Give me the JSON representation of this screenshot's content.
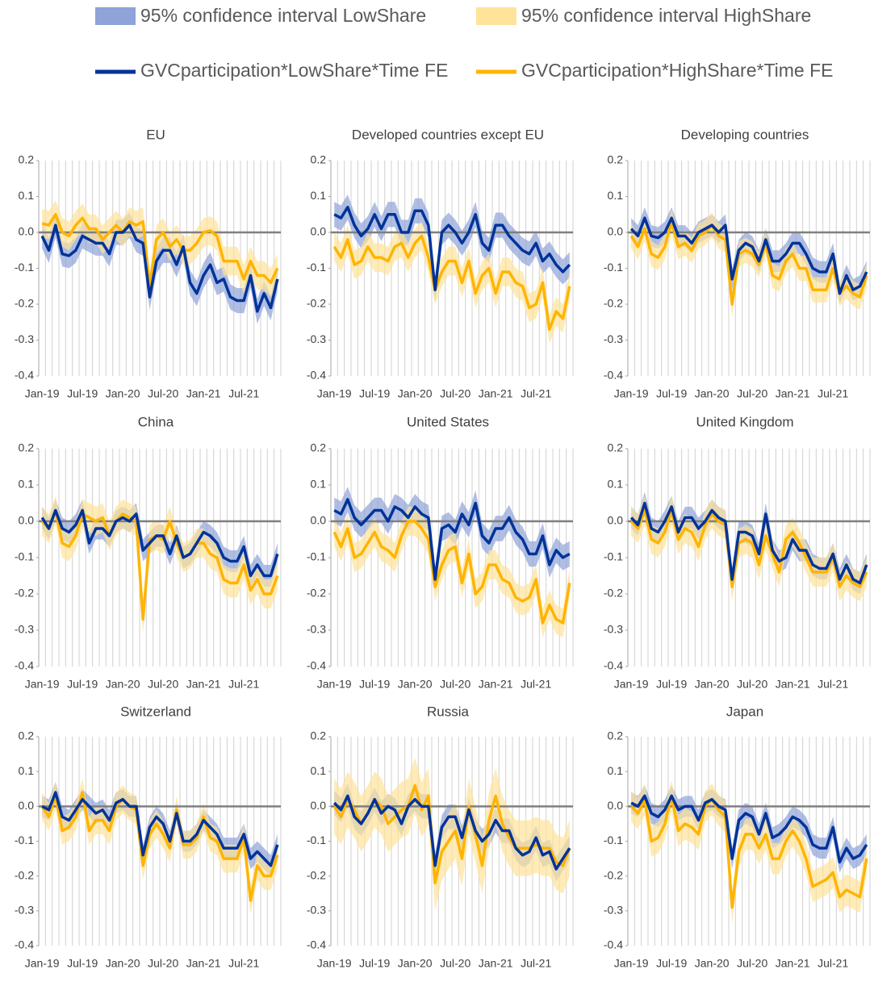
{
  "legend": [
    {
      "name": "GVCparticipation*LowShare*Time FE",
      "color": "#003399",
      "band_name": "95% confidence interval LowShare",
      "band_color": "#8fa3d9"
    },
    {
      "name": "GVCparticipation*HighShare*Time FE",
      "color": "#ffb400",
      "band_name": "95% confidence interval HighShare",
      "band_color": "#ffe39a"
    }
  ],
  "categories": [
    "Jan-19",
    null,
    null,
    null,
    null,
    null,
    "Jul-19",
    null,
    null,
    null,
    null,
    null,
    "Jan-20",
    null,
    null,
    null,
    null,
    null,
    "Jul-20",
    null,
    null,
    null,
    null,
    null,
    "Jan-21",
    null,
    null,
    null,
    null,
    null,
    "Jul-21",
    null,
    null,
    null,
    null,
    null
  ],
  "ylim": [
    -0.4,
    0.2
  ],
  "yticks": [
    -0.4,
    -0.3,
    -0.2,
    -0.1,
    {
      "value": 0,
      "label": "0.0"
    },
    0.1,
    0.2
  ],
  "chart_data": [
    {
      "type": "line",
      "title": "EU",
      "series": [
        {
          "ci": 0.035,
          "values": [
            -0.01,
            -0.05,
            0.02,
            -0.06,
            -0.065,
            -0.05,
            -0.01,
            -0.02,
            -0.03,
            -0.03,
            -0.06,
            0.0,
            0.0,
            0.02,
            -0.02,
            -0.03,
            -0.18,
            -0.08,
            -0.05,
            -0.05,
            -0.09,
            -0.04,
            -0.14,
            -0.17,
            -0.12,
            -0.09,
            -0.14,
            -0.13,
            -0.18,
            -0.19,
            -0.19,
            -0.12,
            -0.22,
            -0.17,
            -0.21,
            -0.13
          ]
        },
        {
          "ci": 0.04,
          "values": [
            0.025,
            0.02,
            0.05,
            0.0,
            -0.01,
            0.02,
            0.04,
            0.01,
            0.01,
            -0.02,
            0.0,
            0.02,
            0.0,
            0.03,
            0.02,
            0.03,
            -0.15,
            -0.02,
            0.0,
            -0.04,
            -0.02,
            -0.05,
            -0.05,
            -0.03,
            0.0,
            0.005,
            -0.01,
            -0.08,
            -0.08,
            -0.08,
            -0.13,
            -0.08,
            -0.12,
            -0.12,
            -0.14,
            -0.1
          ]
        }
      ]
    },
    {
      "type": "line",
      "title": "Developed countries except EU",
      "series": [
        {
          "ci": 0.035,
          "values": [
            0.05,
            0.04,
            0.07,
            0.02,
            -0.01,
            0.01,
            0.05,
            0.01,
            0.05,
            0.05,
            0.0,
            0.0,
            0.06,
            0.06,
            0.02,
            -0.16,
            0.0,
            0.02,
            0.0,
            -0.03,
            0.0,
            0.05,
            -0.03,
            -0.05,
            0.02,
            0.02,
            -0.01,
            -0.03,
            -0.05,
            -0.06,
            -0.03,
            -0.08,
            -0.06,
            -0.09,
            -0.11,
            -0.09
          ]
        },
        {
          "ci": 0.04,
          "values": [
            -0.04,
            -0.07,
            -0.02,
            -0.09,
            -0.08,
            -0.04,
            -0.07,
            -0.07,
            -0.08,
            -0.04,
            -0.03,
            -0.07,
            -0.03,
            -0.01,
            -0.07,
            -0.16,
            -0.11,
            -0.08,
            -0.08,
            -0.14,
            -0.08,
            -0.17,
            -0.12,
            -0.1,
            -0.17,
            -0.11,
            -0.11,
            -0.14,
            -0.15,
            -0.21,
            -0.2,
            -0.14,
            -0.27,
            -0.22,
            -0.24,
            -0.15
          ]
        }
      ]
    },
    {
      "type": "line",
      "title": "Developing countries",
      "series": [
        {
          "ci": 0.03,
          "values": [
            0.01,
            -0.01,
            0.04,
            -0.01,
            -0.015,
            0.0,
            0.04,
            -0.01,
            -0.01,
            -0.03,
            0.0,
            0.01,
            0.02,
            0.0,
            0.02,
            -0.13,
            -0.05,
            -0.03,
            -0.04,
            -0.08,
            -0.02,
            -0.08,
            -0.08,
            -0.06,
            -0.03,
            -0.03,
            -0.06,
            -0.1,
            -0.11,
            -0.11,
            -0.06,
            -0.17,
            -0.12,
            -0.16,
            -0.15,
            -0.11
          ]
        },
        {
          "ci": 0.035,
          "values": [
            -0.01,
            -0.04,
            0.01,
            -0.06,
            -0.07,
            -0.04,
            0.03,
            -0.04,
            -0.03,
            -0.05,
            -0.01,
            0.0,
            0.02,
            -0.01,
            -0.02,
            -0.2,
            -0.06,
            -0.05,
            -0.06,
            -0.09,
            -0.03,
            -0.12,
            -0.13,
            -0.08,
            -0.06,
            -0.1,
            -0.1,
            -0.16,
            -0.16,
            -0.16,
            -0.1,
            -0.17,
            -0.15,
            -0.17,
            -0.18,
            -0.12
          ]
        }
      ]
    },
    {
      "type": "line",
      "title": "China",
      "series": [
        {
          "ci": 0.03,
          "values": [
            0.01,
            -0.02,
            0.03,
            -0.02,
            -0.03,
            -0.01,
            0.03,
            -0.06,
            -0.02,
            -0.02,
            -0.04,
            0.0,
            0.01,
            0.0,
            0.02,
            -0.08,
            -0.06,
            -0.04,
            -0.04,
            -0.09,
            -0.04,
            -0.1,
            -0.09,
            -0.06,
            -0.03,
            -0.04,
            -0.06,
            -0.1,
            -0.11,
            -0.11,
            -0.07,
            -0.15,
            -0.12,
            -0.15,
            -0.15,
            -0.09
          ]
        },
        {
          "ci": 0.04,
          "values": [
            0.0,
            -0.02,
            0.03,
            -0.06,
            -0.07,
            -0.04,
            0.02,
            0.01,
            0.0,
            0.01,
            -0.04,
            0.0,
            0.02,
            0.01,
            0.0,
            -0.27,
            -0.05,
            -0.04,
            -0.05,
            0.0,
            -0.06,
            -0.1,
            -0.09,
            -0.06,
            -0.06,
            -0.09,
            -0.1,
            -0.16,
            -0.17,
            -0.17,
            -0.12,
            -0.19,
            -0.16,
            -0.2,
            -0.2,
            -0.15
          ]
        }
      ]
    },
    {
      "type": "line",
      "title": "United States",
      "series": [
        {
          "ci": 0.035,
          "values": [
            0.03,
            0.02,
            0.06,
            0.01,
            -0.01,
            0.01,
            0.03,
            0.03,
            0.0,
            0.04,
            0.03,
            0.01,
            0.04,
            0.02,
            0.01,
            -0.16,
            -0.02,
            -0.01,
            -0.03,
            0.02,
            -0.01,
            0.05,
            -0.04,
            -0.06,
            -0.02,
            -0.02,
            0.01,
            -0.03,
            -0.05,
            -0.09,
            -0.09,
            -0.04,
            -0.12,
            -0.08,
            -0.1,
            -0.09
          ]
        },
        {
          "ci": 0.04,
          "values": [
            -0.03,
            -0.07,
            -0.02,
            -0.1,
            -0.09,
            -0.06,
            -0.03,
            -0.07,
            -0.08,
            -0.1,
            -0.04,
            0.0,
            0.0,
            -0.02,
            -0.05,
            -0.18,
            -0.12,
            -0.08,
            -0.07,
            -0.17,
            -0.09,
            -0.2,
            -0.18,
            -0.12,
            -0.12,
            -0.16,
            -0.17,
            -0.21,
            -0.22,
            -0.21,
            -0.16,
            -0.28,
            -0.23,
            -0.27,
            -0.28,
            -0.17
          ]
        }
      ]
    },
    {
      "type": "line",
      "title": "United Kingdom",
      "series": [
        {
          "ci": 0.03,
          "values": [
            0.01,
            -0.01,
            0.05,
            -0.02,
            -0.03,
            0.0,
            0.04,
            -0.03,
            0.01,
            0.01,
            -0.02,
            0.0,
            0.03,
            0.01,
            0.0,
            -0.16,
            -0.03,
            -0.03,
            -0.04,
            -0.09,
            0.02,
            -0.08,
            -0.11,
            -0.1,
            -0.05,
            -0.08,
            -0.08,
            -0.12,
            -0.13,
            -0.13,
            -0.09,
            -0.16,
            -0.12,
            -0.16,
            -0.17,
            -0.12
          ]
        },
        {
          "ci": 0.04,
          "values": [
            0.0,
            -0.02,
            0.03,
            -0.05,
            -0.06,
            -0.03,
            0.03,
            -0.05,
            -0.02,
            -0.03,
            -0.07,
            -0.01,
            0.02,
            0.0,
            -0.01,
            -0.18,
            -0.06,
            -0.05,
            -0.06,
            -0.12,
            -0.04,
            -0.09,
            -0.14,
            -0.05,
            -0.03,
            -0.06,
            -0.1,
            -0.14,
            -0.14,
            -0.14,
            -0.1,
            -0.18,
            -0.15,
            -0.17,
            -0.18,
            -0.14
          ]
        }
      ]
    },
    {
      "type": "line",
      "title": "Switzerland",
      "series": [
        {
          "ci": 0.03,
          "values": [
            0.0,
            -0.01,
            0.04,
            -0.03,
            -0.04,
            -0.01,
            0.02,
            0.0,
            -0.02,
            -0.01,
            -0.04,
            0.01,
            0.02,
            0.0,
            0.0,
            -0.14,
            -0.06,
            -0.03,
            -0.05,
            -0.1,
            -0.02,
            -0.1,
            -0.1,
            -0.08,
            -0.04,
            -0.06,
            -0.08,
            -0.12,
            -0.12,
            -0.12,
            -0.08,
            -0.15,
            -0.13,
            -0.15,
            -0.17,
            -0.11
          ]
        },
        {
          "ci": 0.04,
          "values": [
            0.0,
            -0.03,
            0.03,
            -0.07,
            -0.06,
            -0.03,
            0.04,
            -0.07,
            -0.04,
            -0.04,
            -0.07,
            0.0,
            0.02,
            0.0,
            -0.01,
            -0.17,
            -0.08,
            -0.05,
            -0.08,
            -0.12,
            -0.01,
            -0.11,
            -0.11,
            -0.09,
            -0.03,
            -0.09,
            -0.1,
            -0.15,
            -0.15,
            -0.15,
            -0.09,
            -0.27,
            -0.17,
            -0.2,
            -0.2,
            -0.14
          ]
        }
      ]
    },
    {
      "type": "line",
      "title": "Russia",
      "series": [
        {
          "ci": 0.035,
          "values": [
            0.01,
            -0.01,
            0.03,
            -0.03,
            -0.05,
            -0.02,
            0.02,
            -0.02,
            0.0,
            -0.01,
            -0.05,
            0.0,
            0.02,
            0.0,
            0.0,
            -0.17,
            -0.06,
            -0.03,
            -0.03,
            -0.09,
            -0.01,
            -0.07,
            -0.1,
            -0.08,
            -0.04,
            -0.07,
            -0.07,
            -0.12,
            -0.14,
            -0.13,
            -0.09,
            -0.14,
            -0.13,
            -0.18,
            -0.15,
            -0.12
          ]
        },
        {
          "ci": 0.08,
          "values": [
            0.0,
            -0.03,
            0.02,
            -0.01,
            -0.05,
            -0.02,
            0.02,
            0.0,
            -0.05,
            -0.03,
            -0.01,
            0.0,
            0.06,
            -0.01,
            0.03,
            -0.22,
            -0.13,
            -0.1,
            -0.07,
            -0.15,
            0.0,
            -0.08,
            -0.17,
            -0.04,
            0.03,
            -0.05,
            -0.09,
            -0.12,
            -0.12,
            -0.12,
            -0.11,
            -0.12,
            -0.12,
            -0.16,
            -0.17,
            -0.12
          ]
        }
      ]
    },
    {
      "type": "line",
      "title": "Japan",
      "series": [
        {
          "ci": 0.03,
          "values": [
            0.01,
            0.0,
            0.03,
            -0.02,
            -0.03,
            -0.01,
            0.03,
            -0.01,
            0.0,
            0.0,
            -0.04,
            0.01,
            0.02,
            0.0,
            -0.01,
            -0.15,
            -0.04,
            -0.02,
            -0.03,
            -0.08,
            -0.02,
            -0.09,
            -0.08,
            -0.06,
            -0.03,
            -0.04,
            -0.06,
            -0.11,
            -0.12,
            -0.12,
            -0.06,
            -0.16,
            -0.12,
            -0.15,
            -0.14,
            -0.11
          ]
        },
        {
          "ci": 0.045,
          "values": [
            0.0,
            -0.02,
            0.02,
            -0.1,
            -0.09,
            -0.05,
            0.03,
            -0.07,
            -0.05,
            -0.06,
            -0.08,
            0.0,
            0.02,
            -0.01,
            -0.03,
            -0.29,
            -0.13,
            -0.08,
            -0.08,
            -0.12,
            -0.08,
            -0.15,
            -0.15,
            -0.1,
            -0.07,
            -0.1,
            -0.15,
            -0.23,
            -0.22,
            -0.21,
            -0.19,
            -0.26,
            -0.24,
            -0.25,
            -0.26,
            -0.15
          ]
        }
      ]
    }
  ]
}
